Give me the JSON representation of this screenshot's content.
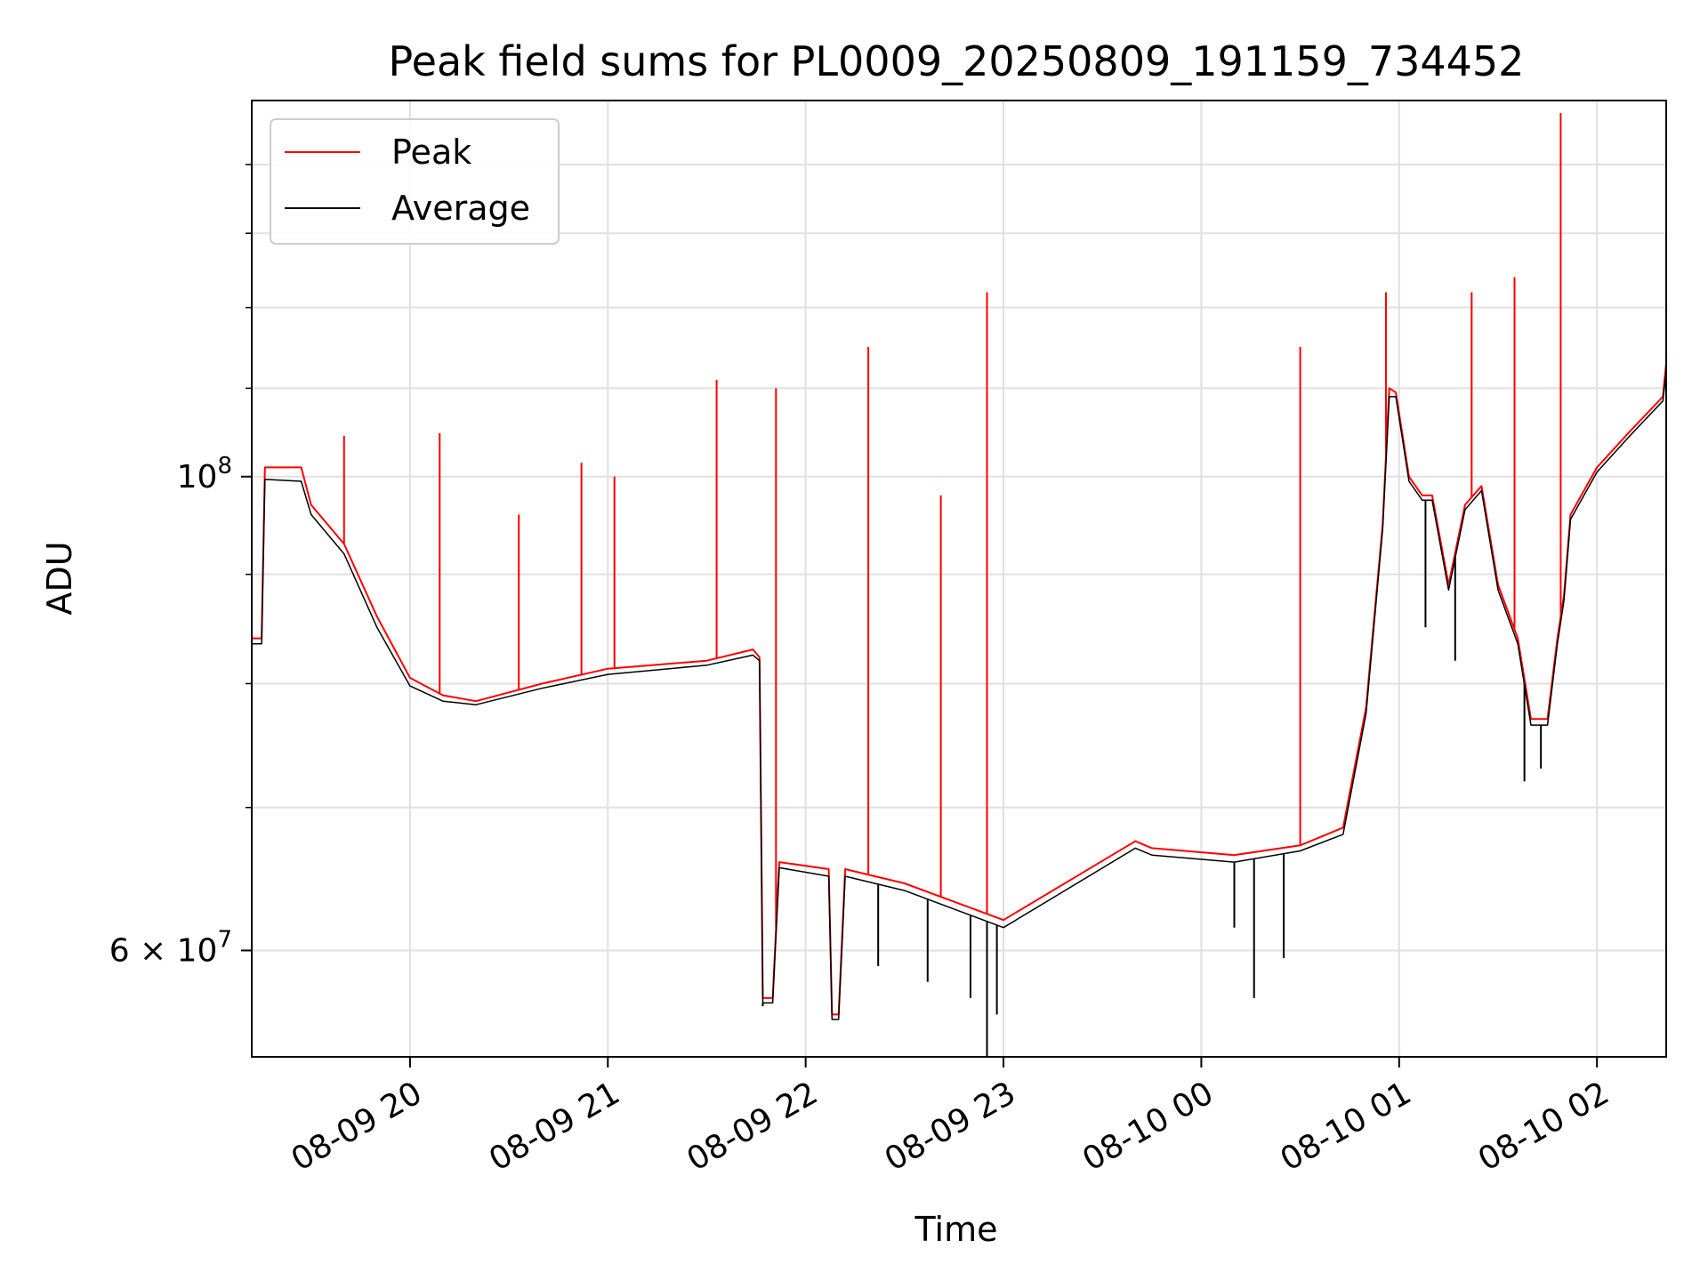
{
  "chart_data": {
    "type": "line",
    "title": "Peak field sums for PL0009_20250809_191159_734452",
    "xlabel": "Time",
    "ylabel": "ADU",
    "yscale": "log",
    "grid": true,
    "legend_position": "top-left",
    "xlim": [
      "2025-08-09 19:12",
      "2025-08-10 02:21"
    ],
    "ylim": [
      53500000,
      150000000
    ],
    "x_ticks": [
      "08-09 20",
      "08-09 21",
      "08-09 22",
      "08-09 23",
      "08-10 00",
      "08-10 01",
      "08-10 02"
    ],
    "y_major_ticks": [
      {
        "value": 100000000,
        "label_base": "10",
        "label_exp": "8"
      },
      {
        "value": 60000000,
        "label_base": "6 × 10",
        "label_exp": "7"
      }
    ],
    "series": [
      {
        "name": "Peak",
        "color": "#ff0000",
        "baseline": [
          [
            "2025-08-09 19:12",
            84000000
          ],
          [
            "2025-08-09 19:15",
            84000000
          ],
          [
            "2025-08-09 19:16",
            101000000
          ],
          [
            "2025-08-09 19:27",
            101000000
          ],
          [
            "2025-08-09 19:30",
            97000000
          ],
          [
            "2025-08-09 19:40",
            93000000
          ],
          [
            "2025-08-09 19:50",
            86000000
          ],
          [
            "2025-08-09 20:00",
            80500000
          ],
          [
            "2025-08-09 20:10",
            79000000
          ],
          [
            "2025-08-09 20:20",
            78500000
          ],
          [
            "2025-08-09 20:40",
            80000000
          ],
          [
            "2025-08-09 21:00",
            81300000
          ],
          [
            "2025-08-09 21:30",
            82000000
          ],
          [
            "2025-08-09 21:44",
            83000000
          ],
          [
            "2025-08-09 21:46",
            82300000
          ],
          [
            "2025-08-09 21:47",
            57000000
          ],
          [
            "2025-08-09 21:50",
            57000000
          ],
          [
            "2025-08-09 21:52",
            66000000
          ],
          [
            "2025-08-09 22:07",
            65500000
          ],
          [
            "2025-08-09 22:08",
            56000000
          ],
          [
            "2025-08-09 22:10",
            56000000
          ],
          [
            "2025-08-09 22:12",
            65500000
          ],
          [
            "2025-08-09 22:30",
            64500000
          ],
          [
            "2025-08-09 23:00",
            62000000
          ],
          [
            "2025-08-09 23:40",
            67500000
          ],
          [
            "2025-08-09 23:45",
            67000000
          ],
          [
            "2025-08-10 00:10",
            66500000
          ],
          [
            "2025-08-10 00:30",
            67200000
          ],
          [
            "2025-08-10 00:43",
            68500000
          ],
          [
            "2025-08-10 00:50",
            78000000
          ],
          [
            "2025-08-10 00:55",
            95000000
          ],
          [
            "2025-08-10 00:57",
            110000000
          ],
          [
            "2025-08-10 00:59",
            109500000
          ],
          [
            "2025-08-10 01:03",
            100000000
          ],
          [
            "2025-08-10 01:07",
            98000000
          ],
          [
            "2025-08-10 01:10",
            98000000
          ],
          [
            "2025-08-10 01:15",
            89000000
          ],
          [
            "2025-08-10 01:20",
            97000000
          ],
          [
            "2025-08-10 01:25",
            99000000
          ],
          [
            "2025-08-10 01:30",
            89000000
          ],
          [
            "2025-08-10 01:36",
            84000000
          ],
          [
            "2025-08-10 01:40",
            77000000
          ],
          [
            "2025-08-10 01:45",
            77000000
          ],
          [
            "2025-08-10 01:48",
            84000000
          ],
          [
            "2025-08-10 01:50",
            88000000
          ],
          [
            "2025-08-10 01:52",
            96000000
          ],
          [
            "2025-08-10 02:00",
            101000000
          ],
          [
            "2025-08-10 02:10",
            105000000
          ],
          [
            "2025-08-10 02:20",
            109000000
          ],
          [
            "2025-08-10 02:21",
            113000000
          ]
        ],
        "spikes": [
          [
            "2025-08-09 19:40",
            104500000
          ],
          [
            "2025-08-09 20:09",
            104800000
          ],
          [
            "2025-08-09 20:33",
            96000000
          ],
          [
            "2025-08-09 20:52",
            101500000
          ],
          [
            "2025-08-09 21:02",
            100000000
          ],
          [
            "2025-08-09 21:33",
            111000000
          ],
          [
            "2025-08-09 21:51",
            110000000
          ],
          [
            "2025-08-09 22:19",
            115000000
          ],
          [
            "2025-08-09 22:41",
            98000000
          ],
          [
            "2025-08-09 22:55",
            122000000
          ],
          [
            "2025-08-10 00:30",
            115000000
          ],
          [
            "2025-08-10 00:56",
            122000000
          ],
          [
            "2025-08-10 01:22",
            122000000
          ],
          [
            "2025-08-10 01:35",
            124000000
          ],
          [
            "2025-08-10 01:49",
            148000000
          ]
        ]
      },
      {
        "name": "Average",
        "color": "#000000",
        "baseline": [
          [
            "2025-08-09 19:12",
            83500000
          ],
          [
            "2025-08-09 19:15",
            83500000
          ],
          [
            "2025-08-09 19:16",
            99700000
          ],
          [
            "2025-08-09 19:27",
            99500000
          ],
          [
            "2025-08-09 19:30",
            96000000
          ],
          [
            "2025-08-09 19:40",
            92000000
          ],
          [
            "2025-08-09 19:50",
            85000000
          ],
          [
            "2025-08-09 20:00",
            79800000
          ],
          [
            "2025-08-09 20:10",
            78500000
          ],
          [
            "2025-08-09 20:20",
            78200000
          ],
          [
            "2025-08-09 20:40",
            79600000
          ],
          [
            "2025-08-09 21:00",
            80800000
          ],
          [
            "2025-08-09 21:30",
            81600000
          ],
          [
            "2025-08-09 21:44",
            82500000
          ],
          [
            "2025-08-09 21:46",
            82000000
          ],
          [
            "2025-08-09 21:47",
            56700000
          ],
          [
            "2025-08-09 21:50",
            56700000
          ],
          [
            "2025-08-09 21:52",
            65600000
          ],
          [
            "2025-08-09 22:07",
            65000000
          ],
          [
            "2025-08-09 22:08",
            55700000
          ],
          [
            "2025-08-09 22:10",
            55700000
          ],
          [
            "2025-08-09 22:12",
            65000000
          ],
          [
            "2025-08-09 22:30",
            64000000
          ],
          [
            "2025-08-09 23:00",
            61500000
          ],
          [
            "2025-08-09 23:40",
            67000000
          ],
          [
            "2025-08-09 23:45",
            66500000
          ],
          [
            "2025-08-10 00:10",
            66000000
          ],
          [
            "2025-08-10 00:30",
            66800000
          ],
          [
            "2025-08-10 00:43",
            68000000
          ],
          [
            "2025-08-10 00:50",
            77500000
          ],
          [
            "2025-08-10 00:55",
            94500000
          ],
          [
            "2025-08-10 00:57",
            109000000
          ],
          [
            "2025-08-10 00:59",
            109000000
          ],
          [
            "2025-08-10 01:03",
            99500000
          ],
          [
            "2025-08-10 01:07",
            97500000
          ],
          [
            "2025-08-10 01:10",
            97500000
          ],
          [
            "2025-08-10 01:15",
            88500000
          ],
          [
            "2025-08-10 01:20",
            96500000
          ],
          [
            "2025-08-10 01:25",
            98500000
          ],
          [
            "2025-08-10 01:30",
            88500000
          ],
          [
            "2025-08-10 01:36",
            83500000
          ],
          [
            "2025-08-10 01:40",
            76500000
          ],
          [
            "2025-08-10 01:45",
            76500000
          ],
          [
            "2025-08-10 01:48",
            83500000
          ],
          [
            "2025-08-10 01:50",
            87500000
          ],
          [
            "2025-08-10 01:52",
            95500000
          ],
          [
            "2025-08-10 02:00",
            100500000
          ],
          [
            "2025-08-10 02:10",
            104500000
          ],
          [
            "2025-08-10 02:20",
            108500000
          ],
          [
            "2025-08-10 02:21",
            112000000
          ]
        ],
        "dips": [
          [
            "2025-08-09 21:47",
            56500000
          ],
          [
            "2025-08-09 22:22",
            59000000
          ],
          [
            "2025-08-09 22:37",
            58000000
          ],
          [
            "2025-08-09 22:50",
            57000000
          ],
          [
            "2025-08-09 22:55",
            53500000
          ],
          [
            "2025-08-09 22:58",
            56000000
          ],
          [
            "2025-08-10 00:10",
            61500000
          ],
          [
            "2025-08-10 00:16",
            57000000
          ],
          [
            "2025-08-10 00:25",
            59500000
          ],
          [
            "2025-08-10 01:08",
            85000000
          ],
          [
            "2025-08-10 01:17",
            82000000
          ],
          [
            "2025-08-10 01:38",
            72000000
          ],
          [
            "2025-08-10 01:43",
            73000000
          ]
        ]
      }
    ]
  }
}
